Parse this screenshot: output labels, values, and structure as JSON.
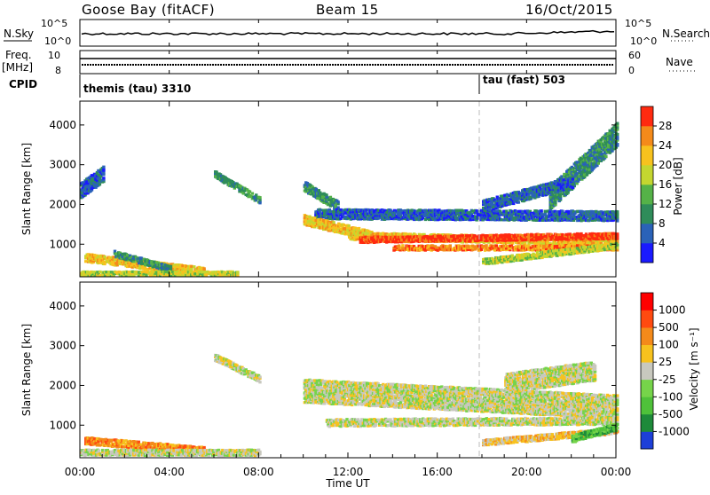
{
  "header": {
    "station": "Goose Bay (fitACF)",
    "beam": "Beam 15",
    "date": "16/Oct/2015"
  },
  "strip_panels": {
    "nsky_label": "N.Sky",
    "nsky_ticks": [
      "10^5",
      "10^0"
    ],
    "nsearch_label": "N.Search",
    "nsearch_ticks": [
      "10^5",
      "10^0"
    ],
    "freq_label_1": "Freq.",
    "freq_label_2": "[MHz]",
    "freq_ticks": [
      "10",
      "8"
    ],
    "nave_label": "Nave",
    "nave_ticks": [
      "60",
      "0"
    ],
    "cpid_label": "CPID",
    "cpid_segments": [
      {
        "label": "themis (tau) 3310",
        "start_hour": 0
      },
      {
        "label": "tau (fast) 503",
        "start_hour": 18
      }
    ]
  },
  "chart_data": [
    {
      "type": "heatmap",
      "name": "power",
      "ylabel": "Slant Range [km]",
      "xlabel": "Time UT",
      "x_tick_labels": [
        "00:00",
        "04:00",
        "08:00",
        "12:00",
        "16:00",
        "20:00",
        "00:00"
      ],
      "x_ticks_hours": [
        0,
        4,
        8,
        12,
        16,
        20,
        24
      ],
      "y_tick_labels": [
        "1000",
        "2000",
        "3000",
        "4000"
      ],
      "y_ticks_km": [
        1000,
        2000,
        3000,
        4000
      ],
      "ylim": [
        180,
        4600
      ],
      "xlim": [
        0,
        24
      ],
      "colorbar_label": "Power [dB]",
      "colorbar_ticks": [
        "4",
        "8",
        "12",
        "16",
        "20",
        "24",
        "28"
      ],
      "colorbar_colors": [
        "#1a1aff",
        "#2a62b8",
        "#2f8c5a",
        "#55b248",
        "#c4d630",
        "#f7c21e",
        "#f48a1a",
        "#ff2a10"
      ],
      "bands": [
        {
          "x0": 0.2,
          "x1": 5.5,
          "y_start": 700,
          "y_end": 350,
          "width": 220,
          "level": 5
        },
        {
          "x0": 1.5,
          "x1": 4.0,
          "y_start": 800,
          "y_end": 420,
          "width": 160,
          "level": 2
        },
        {
          "x0": 0.0,
          "x1": 7.0,
          "y_start": 300,
          "y_end": 300,
          "width": 120,
          "level": 4
        },
        {
          "x0": 6.0,
          "x1": 8.0,
          "y_start": 2800,
          "y_end": 2150,
          "width": 180,
          "level": 2
        },
        {
          "x0": 0.0,
          "x1": 1.0,
          "y_start": 2400,
          "y_end": 2800,
          "width": 400,
          "level": 1
        },
        {
          "x0": 10.0,
          "x1": 11.5,
          "y_start": 2500,
          "y_end": 2000,
          "width": 260,
          "level": 2
        },
        {
          "x0": 10.5,
          "x1": 24.0,
          "y_start": 1800,
          "y_end": 1750,
          "width": 260,
          "level": 1
        },
        {
          "x0": 10.0,
          "x1": 13.0,
          "y_start": 1650,
          "y_end": 1250,
          "width": 260,
          "level": 5
        },
        {
          "x0": 12.0,
          "x1": 24.0,
          "y_start": 1250,
          "y_end": 1100,
          "width": 200,
          "level": 5
        },
        {
          "x0": 12.5,
          "x1": 24.0,
          "y_start": 1150,
          "y_end": 1250,
          "width": 160,
          "level": 7
        },
        {
          "x0": 14.0,
          "x1": 24.0,
          "y_start": 950,
          "y_end": 950,
          "width": 140,
          "level": 6
        },
        {
          "x0": 18.0,
          "x1": 24.0,
          "y_start": 600,
          "y_end": 1000,
          "width": 160,
          "level": 4
        },
        {
          "x0": 21.0,
          "x1": 24.0,
          "y_start": 2200,
          "y_end": 3800,
          "width": 600,
          "level": 2
        },
        {
          "x0": 18.0,
          "x1": 22.0,
          "y_start": 2000,
          "y_end": 2600,
          "width": 300,
          "level": 1
        }
      ]
    },
    {
      "type": "heatmap",
      "name": "velocity",
      "ylabel": "Slant Range [km]",
      "xlabel": "Time UT",
      "x_tick_labels": [
        "00:00",
        "04:00",
        "08:00",
        "12:00",
        "16:00",
        "20:00",
        "00:00"
      ],
      "x_ticks_hours": [
        0,
        4,
        8,
        12,
        16,
        20,
        24
      ],
      "y_tick_labels": [
        "1000",
        "2000",
        "3000",
        "4000"
      ],
      "y_ticks_km": [
        1000,
        2000,
        3000,
        4000
      ],
      "ylim": [
        180,
        4600
      ],
      "xlim": [
        0,
        24
      ],
      "colorbar_label": "Velocity [m s⁻¹]",
      "colorbar_ticks": [
        "1000",
        "500",
        "100",
        "25",
        "-25",
        "-100",
        "-500",
        "-1000"
      ],
      "colorbar_colors": [
        "#1d3fd8",
        "#1e8a3a",
        "#4fc13a",
        "#76d44a",
        "#c8c8be",
        "#f7c21e",
        "#f48a1a",
        "#ff4a10",
        "#ff0000"
      ],
      "bands": [
        {
          "x0": 0.2,
          "x1": 5.5,
          "y_start": 650,
          "y_end": 400,
          "width": 200,
          "level": 6
        },
        {
          "x0": 0.0,
          "x1": 8.0,
          "y_start": 350,
          "y_end": 350,
          "width": 160,
          "level": 4
        },
        {
          "x0": 6.0,
          "x1": 8.0,
          "y_start": 2750,
          "y_end": 2200,
          "width": 180,
          "level": 4
        },
        {
          "x0": 10.0,
          "x1": 24.0,
          "y_start": 1900,
          "y_end": 1500,
          "width": 600,
          "level": 4
        },
        {
          "x0": 11.0,
          "x1": 24.0,
          "y_start": 1100,
          "y_end": 1150,
          "width": 200,
          "level": 4
        },
        {
          "x0": 18.0,
          "x1": 24.0,
          "y_start": 600,
          "y_end": 900,
          "width": 160,
          "level": 5
        },
        {
          "x0": 22.0,
          "x1": 24.0,
          "y_start": 700,
          "y_end": 1000,
          "width": 200,
          "level": 2
        },
        {
          "x0": 19.0,
          "x1": 23.0,
          "y_start": 2100,
          "y_end": 2400,
          "width": 500,
          "level": 4
        }
      ]
    }
  ]
}
